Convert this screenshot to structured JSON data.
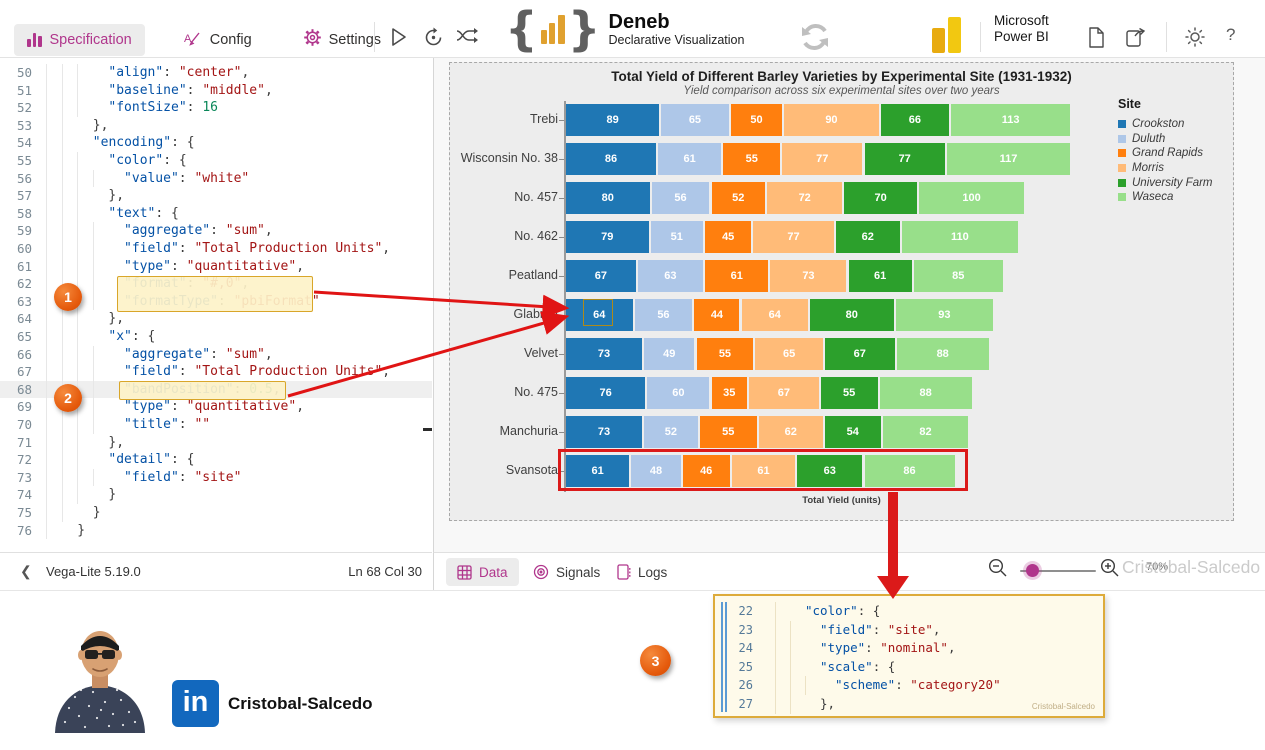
{
  "header": {
    "tabs": [
      {
        "label": "Specification",
        "active": true
      },
      {
        "label": "Config",
        "active": false
      },
      {
        "label": "Settings",
        "active": false
      }
    ],
    "brand": {
      "title": "Deneb",
      "subtitle": "Declarative Visualization"
    },
    "microsoft": {
      "line1": "Microsoft",
      "line2": "Power BI"
    },
    "accent_color": "#b0368c"
  },
  "editor": {
    "current_line": 68,
    "lines": [
      {
        "n": 50,
        "i": 4,
        "c": "\"align\": \"center\","
      },
      {
        "n": 51,
        "i": 4,
        "c": "\"baseline\": \"middle\","
      },
      {
        "n": 52,
        "i": 4,
        "c": "\"fontSize\": 16"
      },
      {
        "n": 53,
        "i": 3,
        "c": "},"
      },
      {
        "n": 54,
        "i": 3,
        "c": "\"encoding\": {"
      },
      {
        "n": 55,
        "i": 4,
        "c": "\"color\": {"
      },
      {
        "n": 56,
        "i": 5,
        "c": "\"value\": \"white\""
      },
      {
        "n": 57,
        "i": 4,
        "c": "},"
      },
      {
        "n": 58,
        "i": 4,
        "c": "\"text\": {"
      },
      {
        "n": 59,
        "i": 5,
        "c": "\"aggregate\": \"sum\","
      },
      {
        "n": 60,
        "i": 5,
        "c": "\"field\": \"Total Production Units\","
      },
      {
        "n": 61,
        "i": 5,
        "c": "\"type\": \"quantitative\","
      },
      {
        "n": 62,
        "i": 5,
        "c": "\"format\": \"#,0\","
      },
      {
        "n": 63,
        "i": 5,
        "c": "\"formatType\": \"pbiFormat\""
      },
      {
        "n": 64,
        "i": 4,
        "c": "},"
      },
      {
        "n": 65,
        "i": 4,
        "c": "\"x\": {"
      },
      {
        "n": 66,
        "i": 5,
        "c": "\"aggregate\": \"sum\","
      },
      {
        "n": 67,
        "i": 5,
        "c": "\"field\": \"Total Production Units\","
      },
      {
        "n": 68,
        "i": 5,
        "c": "\"bandPosition\": 0.5,"
      },
      {
        "n": 69,
        "i": 5,
        "c": "\"type\": \"quantitative\","
      },
      {
        "n": 70,
        "i": 5,
        "c": "\"title\": \"\""
      },
      {
        "n": 71,
        "i": 4,
        "c": "},"
      },
      {
        "n": 72,
        "i": 4,
        "c": "\"detail\": {"
      },
      {
        "n": 73,
        "i": 5,
        "c": "\"field\": \"site\""
      },
      {
        "n": 74,
        "i": 4,
        "c": "}"
      },
      {
        "n": 75,
        "i": 3,
        "c": "}"
      },
      {
        "n": 76,
        "i": 2,
        "c": "}"
      }
    ],
    "status": {
      "engine": "Vega-Lite 5.19.0",
      "position": "Ln 68 Col 30"
    }
  },
  "chart_data": {
    "type": "bar",
    "orientation": "horizontal",
    "stacked": true,
    "title": "Total Yield of Different Barley Varieties by Experimental Site (1931-1932)",
    "subtitle": "Yield comparison across six experimental sites over two years",
    "xlabel": "Total Yield (units)",
    "legend_title": "Site",
    "legend_position": "right",
    "grid": false,
    "value_labels": "white, inside segments",
    "categories": [
      "Trebi",
      "Wisconsin No. 38",
      "No. 457",
      "No. 462",
      "Peatland",
      "Glabron",
      "Velvet",
      "No. 475",
      "Manchuria",
      "Svansota"
    ],
    "series": [
      {
        "name": "Crookston",
        "color": "#1f77b4",
        "values": [
          89,
          86,
          80,
          79,
          67,
          64,
          73,
          76,
          73,
          61
        ]
      },
      {
        "name": "Duluth",
        "color": "#aec7e8",
        "values": [
          65,
          61,
          56,
          51,
          63,
          56,
          49,
          60,
          52,
          48
        ]
      },
      {
        "name": "Grand Rapids",
        "color": "#ff7f0e",
        "values": [
          50,
          55,
          52,
          45,
          61,
          44,
          55,
          35,
          55,
          46
        ]
      },
      {
        "name": "Morris",
        "color": "#ffbb78",
        "values": [
          90,
          77,
          72,
          77,
          73,
          64,
          65,
          67,
          62,
          61
        ]
      },
      {
        "name": "University Farm",
        "color": "#2ca02c",
        "values": [
          66,
          77,
          70,
          62,
          61,
          80,
          67,
          55,
          54,
          63
        ]
      },
      {
        "name": "Waseca",
        "color": "#98df8a",
        "values": [
          113,
          117,
          100,
          110,
          85,
          93,
          88,
          88,
          82,
          86
        ]
      }
    ],
    "highlights": {
      "boxed_cell": {
        "category": "Glabron",
        "series": "Crookston",
        "value": 64
      },
      "boxed_row": "Svansota"
    }
  },
  "bottombar": {
    "tabs": [
      "Data",
      "Signals",
      "Logs"
    ],
    "zoom_level": "70%",
    "watermark": "Cristobal-Salcedo"
  },
  "callouts": [
    "1",
    "2",
    "3"
  ],
  "snippet": {
    "lines": [
      {
        "n": 22,
        "i": 2,
        "c": "\"color\": {"
      },
      {
        "n": 23,
        "i": 3,
        "c": "\"field\": \"site\","
      },
      {
        "n": 24,
        "i": 3,
        "c": "\"type\": \"nominal\","
      },
      {
        "n": 25,
        "i": 3,
        "c": "\"scale\": {"
      },
      {
        "n": 26,
        "i": 4,
        "c": "\"scheme\": \"category20\""
      },
      {
        "n": 27,
        "i": 3,
        "c": "},"
      }
    ],
    "watermark": "Cristobal-Salcedo"
  },
  "footer": {
    "name": "Cristobal-Salcedo"
  }
}
